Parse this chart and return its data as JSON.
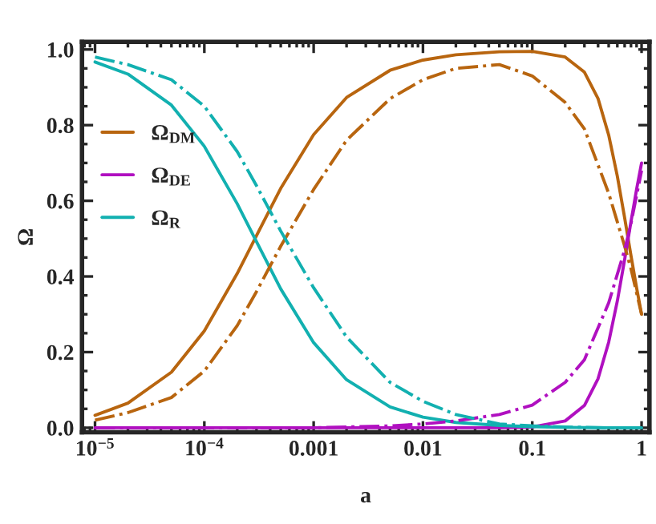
{
  "chart_data": {
    "type": "line",
    "xlabel": "a",
    "ylabel": "Ω",
    "log": "x",
    "xlim": [
      7.6e-06,
      1.18
    ],
    "ylim": [
      -0.012,
      1.02
    ],
    "xticks": [
      {
        "value": 1e-05,
        "label": "10$^{−5}$"
      },
      {
        "value": 0.0001,
        "label": "10$^{−4}$"
      },
      0.001,
      0.01,
      0.1,
      1
    ],
    "yticks": [
      {
        "value": 0,
        "label": "0.0"
      },
      0.2,
      0.4,
      0.6,
      0.8,
      {
        "value": 1,
        "label": "1.0"
      }
    ],
    "grid": false,
    "legend": "top left",
    "marker": "none",
    "series": [
      {
        "name": "Ω$_{DM}$",
        "color": "#b8650f",
        "line_style": "solid",
        "x": [
          1e-05,
          2e-05,
          5e-05,
          0.0001,
          0.0002,
          0.0003,
          0.0005,
          0.001,
          0.002,
          0.005,
          0.01,
          0.02,
          0.05,
          0.1,
          0.2,
          0.3,
          0.4,
          0.5,
          0.6,
          0.7,
          0.8,
          0.9,
          1
        ],
        "values": [
          0.033,
          0.065,
          0.147,
          0.256,
          0.408,
          0.508,
          0.633,
          0.775,
          0.873,
          0.945,
          0.972,
          0.986,
          0.994,
          0.995,
          0.98,
          0.94,
          0.87,
          0.774,
          0.665,
          0.555,
          0.455,
          0.37,
          0.3
        ]
      },
      {
        "name": "Ω$_{DE}$",
        "color": "#b010c0",
        "line_style": "solid",
        "x": [
          1e-05,
          0.01,
          0.05,
          0.1,
          0.2,
          0.3,
          0.4,
          0.5,
          0.6,
          0.7,
          0.8,
          0.9,
          1
        ],
        "values": [
          0,
          0,
          0,
          0.002,
          0.018,
          0.059,
          0.13,
          0.226,
          0.335,
          0.445,
          0.545,
          0.63,
          0.7
        ]
      },
      {
        "name": "Ω$_{R}$",
        "color": "#12b0b0",
        "line_style": "solid",
        "x": [
          1e-05,
          2e-05,
          5e-05,
          0.0001,
          0.0002,
          0.0003,
          0.0005,
          0.001,
          0.002,
          0.005,
          0.01,
          0.02,
          0.05,
          0.1,
          0.2,
          0.5,
          1
        ],
        "values": [
          0.967,
          0.935,
          0.853,
          0.744,
          0.592,
          0.492,
          0.367,
          0.225,
          0.127,
          0.055,
          0.028,
          0.014,
          0.006,
          0.003,
          0.001,
          0,
          0
        ]
      },
      {
        "color": "#b8650f",
        "line_style": "dashdot",
        "x": [
          1e-05,
          2e-05,
          5e-05,
          0.0001,
          0.0002,
          0.0003,
          0.0005,
          0.001,
          0.002,
          0.005,
          0.01,
          0.02,
          0.05,
          0.1,
          0.2,
          0.3,
          0.5,
          0.7,
          0.8,
          1
        ],
        "values": [
          0.02,
          0.04,
          0.08,
          0.15,
          0.27,
          0.36,
          0.48,
          0.63,
          0.76,
          0.87,
          0.92,
          0.95,
          0.96,
          0.93,
          0.86,
          0.79,
          0.62,
          0.48,
          0.42,
          0.3
        ]
      },
      {
        "color": "#b010c0",
        "line_style": "dashdot",
        "x": [
          1e-05,
          0.001,
          0.002,
          0.005,
          0.01,
          0.02,
          0.05,
          0.1,
          0.2,
          0.3,
          0.5,
          0.7,
          0.8,
          1
        ],
        "values": [
          0,
          0,
          0.002,
          0.005,
          0.01,
          0.018,
          0.035,
          0.06,
          0.12,
          0.18,
          0.33,
          0.47,
          0.54,
          0.68
        ]
      },
      {
        "color": "#12b0b0",
        "line_style": "dashdot",
        "x": [
          1e-05,
          2e-05,
          5e-05,
          0.0001,
          0.0002,
          0.0003,
          0.0005,
          0.001,
          0.002,
          0.005,
          0.01,
          0.02,
          0.05,
          0.1,
          0.2,
          0.5,
          1
        ],
        "values": [
          0.98,
          0.96,
          0.92,
          0.85,
          0.73,
          0.64,
          0.52,
          0.37,
          0.24,
          0.12,
          0.07,
          0.035,
          0.01,
          0.005,
          0.002,
          0,
          0
        ]
      }
    ]
  }
}
